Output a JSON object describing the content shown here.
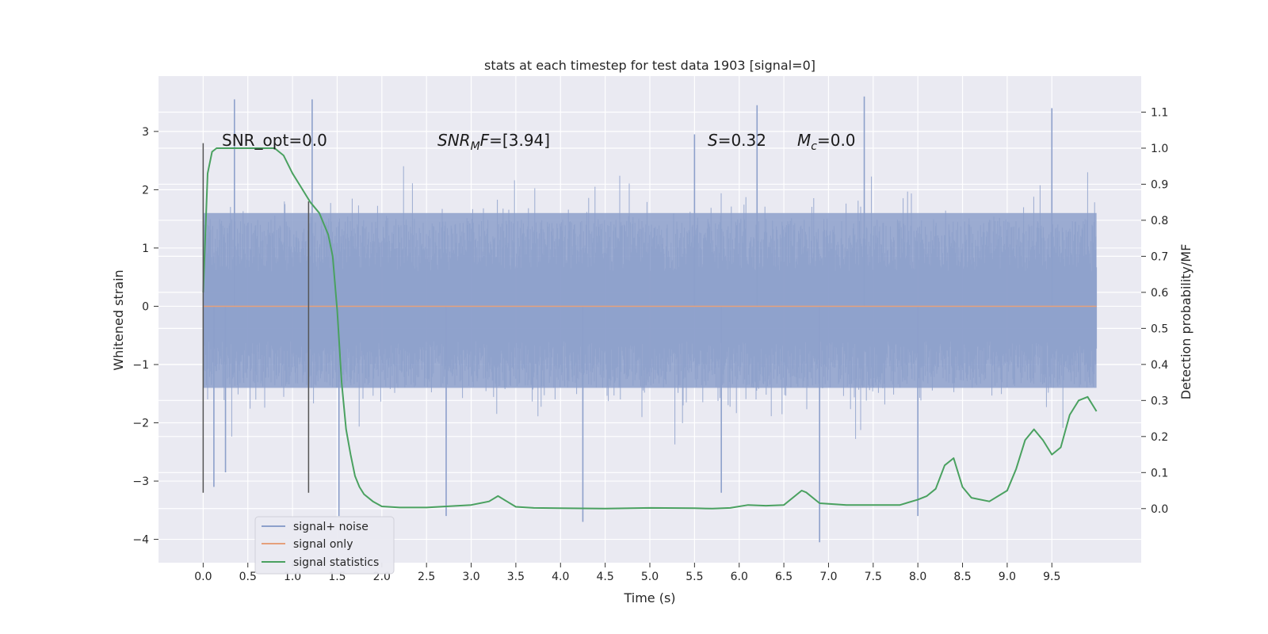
{
  "chart_data": {
    "type": "line",
    "title": "stats at each timestep for test data 1903 [signal=0]",
    "xlabel": "Time (s)",
    "ylabel": "Whitened strain",
    "ylabel_right": "Detection probability/MF",
    "xlim": [
      -0.5,
      10.5
    ],
    "ylim": [
      -4.4,
      3.95
    ],
    "ylim_right": [
      -0.15,
      1.2
    ],
    "xticks": [
      "0.0",
      "0.5",
      "1.0",
      "1.5",
      "2.0",
      "2.5",
      "3.0",
      "3.5",
      "4.0",
      "4.5",
      "5.0",
      "5.5",
      "6.0",
      "6.5",
      "7.0",
      "7.5",
      "8.0",
      "8.5",
      "9.0",
      "9.5"
    ],
    "yticks": [
      "3",
      "2",
      "1",
      "0",
      "−1",
      "−2",
      "−3",
      "−4"
    ],
    "yticks_right": [
      "1.1",
      "1.0",
      "0.9",
      "0.8",
      "0.7",
      "0.6",
      "0.5",
      "0.4",
      "0.3",
      "0.2",
      "0.1",
      "0.0"
    ],
    "grid": true,
    "legend_position": "lower-left",
    "colors": {
      "background": "#eaeaf2",
      "grid": "#ffffff",
      "noise": "#8da0cb",
      "signal_only": "#e5a07c",
      "statistics": "#4aa160",
      "marker": "#555555"
    },
    "annotations": {
      "snr_opt": "SNR_opt=0.0",
      "snr_mf_base": "SNR",
      "snr_mf_sub": "M",
      "snr_mf_italic_end": "F",
      "snr_mf_value": "=[3.94]",
      "s_base": "S",
      "s_value": "=0.32",
      "mc_base": "M",
      "mc_sub": "c",
      "mc_value": "=0.0"
    },
    "vertical_markers": [
      {
        "x": 0.0,
        "y_min": -3.2,
        "y_max": 2.8
      },
      {
        "x": 1.18,
        "y_min": -3.2,
        "y_max": 1.8
      }
    ],
    "series": [
      {
        "name": "signal+ noise",
        "x_range": [
          0.0,
          10.0
        ],
        "band_core": [
          -1.4,
          1.6
        ],
        "spikes": [
          [
            0.35,
            3.55
          ],
          [
            1.22,
            3.55
          ],
          [
            5.5,
            2.95
          ],
          [
            6.2,
            3.45
          ],
          [
            7.4,
            3.6
          ],
          [
            9.5,
            3.4
          ],
          [
            1.52,
            -3.6
          ],
          [
            2.72,
            -3.6
          ],
          [
            4.25,
            -3.7
          ],
          [
            6.9,
            -4.05
          ],
          [
            8.0,
            -3.6
          ],
          [
            0.12,
            -3.1
          ],
          [
            0.25,
            -2.85
          ],
          [
            5.8,
            -3.2
          ]
        ],
        "values_note": "dense noise"
      },
      {
        "name": "signal only",
        "x": [
          0.0,
          10.0
        ],
        "values": [
          0.0,
          0.0
        ]
      },
      {
        "name": "signal statistics",
        "axis": "right",
        "x": [
          0.0,
          0.05,
          0.1,
          0.15,
          0.2,
          0.3,
          0.4,
          0.5,
          0.6,
          0.7,
          0.8,
          0.9,
          1.0,
          1.1,
          1.15,
          1.2,
          1.3,
          1.4,
          1.45,
          1.5,
          1.55,
          1.6,
          1.65,
          1.7,
          1.75,
          1.8,
          1.9,
          2.0,
          2.2,
          2.5,
          3.0,
          3.2,
          3.3,
          3.4,
          3.5,
          3.7,
          4.0,
          4.5,
          5.0,
          5.5,
          5.7,
          5.9,
          6.1,
          6.3,
          6.5,
          6.7,
          6.75,
          6.9,
          7.2,
          7.5,
          7.8,
          8.0,
          8.1,
          8.2,
          8.3,
          8.4,
          8.5,
          8.6,
          8.8,
          9.0,
          9.1,
          9.2,
          9.3,
          9.4,
          9.5,
          9.6,
          9.7,
          9.8,
          9.9,
          10.0
        ],
        "values": [
          0.6,
          0.93,
          0.99,
          1.0,
          1.0,
          1.0,
          1.0,
          1.0,
          1.0,
          1.0,
          1.0,
          0.98,
          0.93,
          0.89,
          0.87,
          0.85,
          0.82,
          0.76,
          0.7,
          0.55,
          0.35,
          0.22,
          0.15,
          0.09,
          0.06,
          0.04,
          0.02,
          0.006,
          0.003,
          0.003,
          0.01,
          0.02,
          0.035,
          0.02,
          0.005,
          0.002,
          0.001,
          0.0,
          0.002,
          0.001,
          0.0,
          0.002,
          0.01,
          0.008,
          0.01,
          0.05,
          0.045,
          0.015,
          0.01,
          0.01,
          0.01,
          0.025,
          0.035,
          0.055,
          0.12,
          0.14,
          0.06,
          0.03,
          0.02,
          0.05,
          0.11,
          0.19,
          0.22,
          0.19,
          0.15,
          0.17,
          0.26,
          0.3,
          0.31,
          0.27
        ]
      }
    ]
  }
}
